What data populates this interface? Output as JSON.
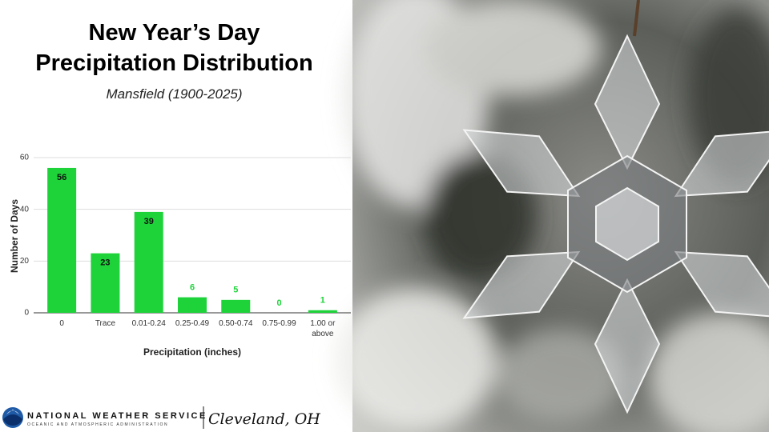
{
  "chart_data": {
    "type": "bar",
    "title": "New Year’s Day Precipitation Distribution",
    "subtitle": "Mansfield (1900-2025)",
    "categories": [
      "0",
      "Trace",
      "0.01-0.24",
      "0.25-0.49",
      "0.50-0.74",
      "0.75-0.99",
      "1.00 or above"
    ],
    "values": [
      56,
      23,
      39,
      6,
      5,
      0,
      1
    ],
    "color": "#1ed33a",
    "x_label": "Precipitation (inches)",
    "y_label": "Number of Days",
    "ylim": [
      0,
      60
    ],
    "yticks": [
      0,
      20,
      40,
      60
    ],
    "grid": true
  },
  "footer": {
    "agency": "NATIONAL WEATHER SERVICE",
    "sub_agency": "OCEANIC AND ATMOSPHERIC ADMINISTRATION",
    "office": "Cleveland, OH"
  }
}
